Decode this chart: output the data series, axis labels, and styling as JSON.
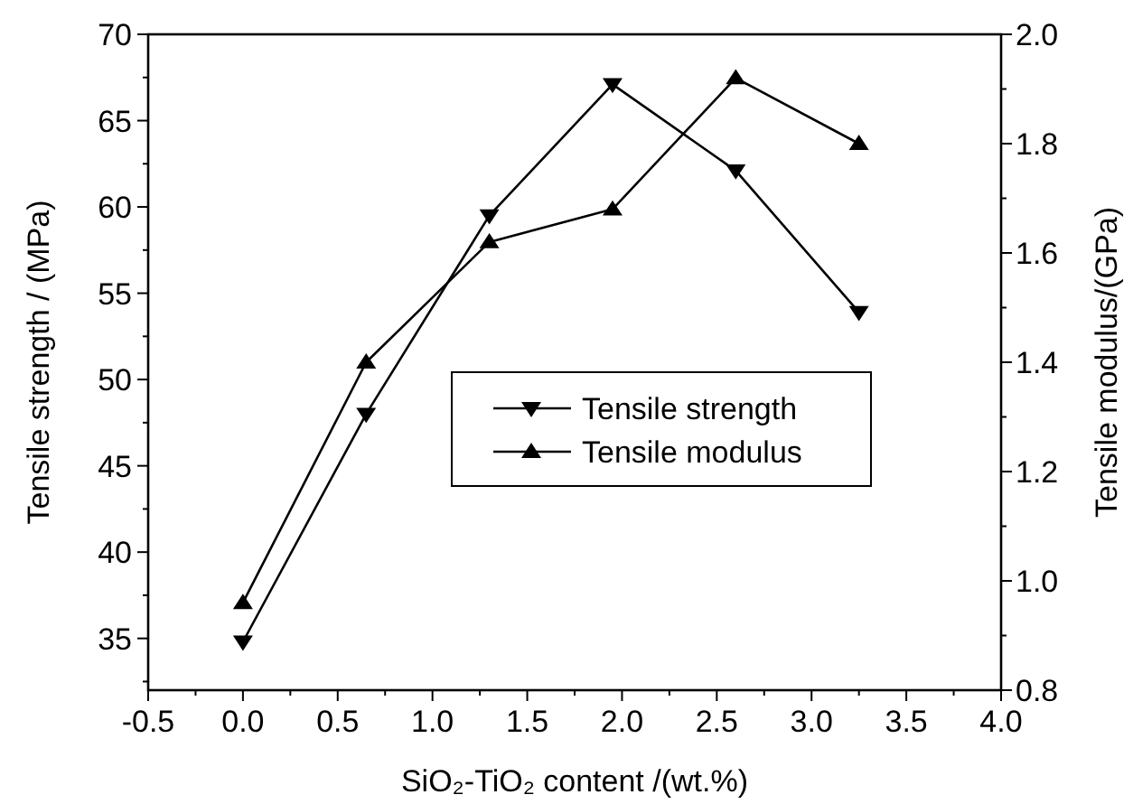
{
  "chart_data": {
    "type": "line",
    "xlabel": "SiO₂-TiO₂ content /(wt.%)",
    "ylabel": "Tensile strength / (MPa)",
    "y2label": "Tensile modulus/(GPa)",
    "x": [
      0,
      0.65,
      1.3,
      1.95,
      2.6,
      3.25
    ],
    "series": [
      {
        "name": "Tensile strength",
        "color": "#000000",
        "marker": "triangle-down",
        "values": [
          34.8,
          48.0,
          59.5,
          67.1,
          62.1,
          53.9
        ]
      },
      {
        "name": "Tensile modulus",
        "color": "#000000",
        "marker": "triangle",
        "axis": "y2",
        "values": [
          0.96,
          1.4,
          1.62,
          1.68,
          1.92,
          1.8
        ]
      }
    ],
    "xlim": [
      -0.5,
      4.0
    ],
    "xticks": [
      {
        "value": -0.5,
        "label": "-0.5"
      },
      {
        "value": -0.25,
        "label": null
      },
      {
        "value": 0,
        "label": "0.0"
      },
      {
        "value": 0.25,
        "label": null
      },
      {
        "value": 0.5,
        "label": "0.5"
      },
      {
        "value": 0.75,
        "label": null
      },
      {
        "value": 1,
        "label": "1.0"
      },
      {
        "value": 1.25,
        "label": null
      },
      {
        "value": 1.5,
        "label": "1.5"
      },
      {
        "value": 1.75,
        "label": null
      },
      {
        "value": 2,
        "label": "2.0"
      },
      {
        "value": 2.25,
        "label": null
      },
      {
        "value": 2.5,
        "label": "2.5"
      },
      {
        "value": 2.75,
        "label": null
      },
      {
        "value": 3,
        "label": "3.0"
      },
      {
        "value": 3.25,
        "label": null
      },
      {
        "value": 3.5,
        "label": "3.5"
      },
      {
        "value": 3.75,
        "label": null
      },
      {
        "value": 4,
        "label": "4.0"
      }
    ],
    "ylim": [
      32,
      70
    ],
    "yticks": [
      {
        "value": 32.5,
        "label": null
      },
      35,
      {
        "value": 37.5,
        "label": null
      },
      40,
      {
        "value": 42.5,
        "label": null
      },
      45,
      {
        "value": 47.5,
        "label": null
      },
      50,
      {
        "value": 52.5,
        "label": null
      },
      55,
      {
        "value": 57.5,
        "label": null
      },
      60,
      {
        "value": 62.5,
        "label": null
      },
      65,
      {
        "value": 67.5,
        "label": null
      },
      70
    ],
    "y2lim": [
      0.8,
      2.0
    ],
    "y2ticks": [
      {
        "value": 0.8,
        "label": "0.8"
      },
      {
        "value": 0.9,
        "label": null
      },
      {
        "value": 1.0,
        "label": "1.0"
      },
      {
        "value": 1.1,
        "label": null
      },
      {
        "value": 1.2,
        "label": "1.2"
      },
      {
        "value": 1.3,
        "label": null
      },
      {
        "value": 1.4,
        "label": "1.4"
      },
      {
        "value": 1.5,
        "label": null
      },
      {
        "value": 1.6,
        "label": "1.6"
      },
      {
        "value": 1.7,
        "label": null
      },
      {
        "value": 1.8,
        "label": "1.8"
      },
      {
        "value": 1.9,
        "label": null
      },
      {
        "value": 2.0,
        "label": "2.0"
      }
    ],
    "legend": "center",
    "line_style": "solid",
    "grid": false
  }
}
